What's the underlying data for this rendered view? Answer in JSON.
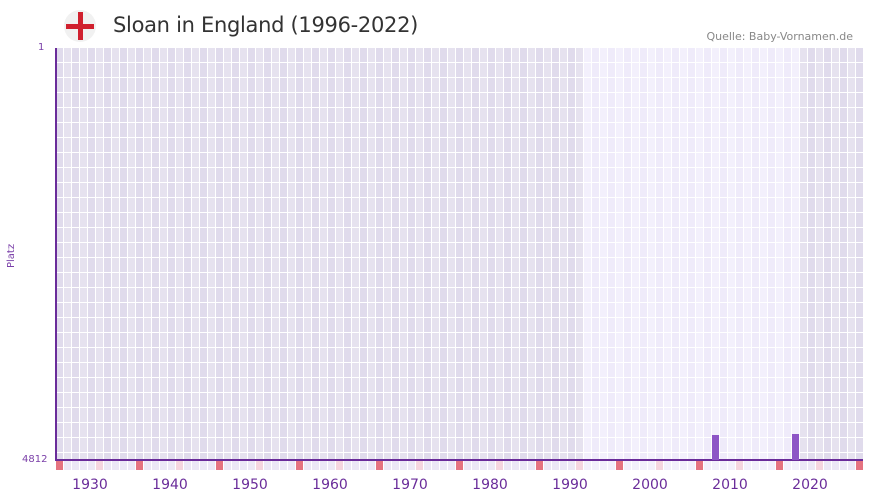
{
  "header": {
    "flag_icon": "england-flag-icon",
    "title": "Sloan in England (1996-2022)",
    "source": "Quelle: Baby-Vornamen.de"
  },
  "colors": {
    "axis": "#6a2c9a",
    "bar": "#8e56c6",
    "grid_dark": "#e3dfee",
    "grid_light": "#f1eefb",
    "marker_red": "#e57380",
    "marker_pink": "#f5d5df"
  },
  "chart_data": {
    "type": "bar",
    "title": "Sloan in England (1996-2022)",
    "xlabel": "",
    "ylabel": "Platz",
    "y_inverted": true,
    "ylim": [
      1,
      4812
    ],
    "ytick_labels": [
      "1",
      "4812"
    ],
    "xlim": [
      1928,
      2028
    ],
    "xtick_labels": [
      "1930",
      "1940",
      "1950",
      "1960",
      "1970",
      "1980",
      "1990",
      "2000",
      "2010",
      "2020"
    ],
    "highlight_range": [
      1994,
      2020
    ],
    "categories": [
      2010,
      2020
    ],
    "series": [
      {
        "name": "Platz",
        "values": [
          4520,
          4505
        ]
      }
    ],
    "grid": true,
    "legend": "none"
  },
  "axis": {
    "y_top": "1",
    "y_bottom": "4812",
    "y_label": "Platz",
    "x_ticks": [
      "1930",
      "1940",
      "1950",
      "1960",
      "1970",
      "1980",
      "1990",
      "2000",
      "2010",
      "2020"
    ]
  }
}
